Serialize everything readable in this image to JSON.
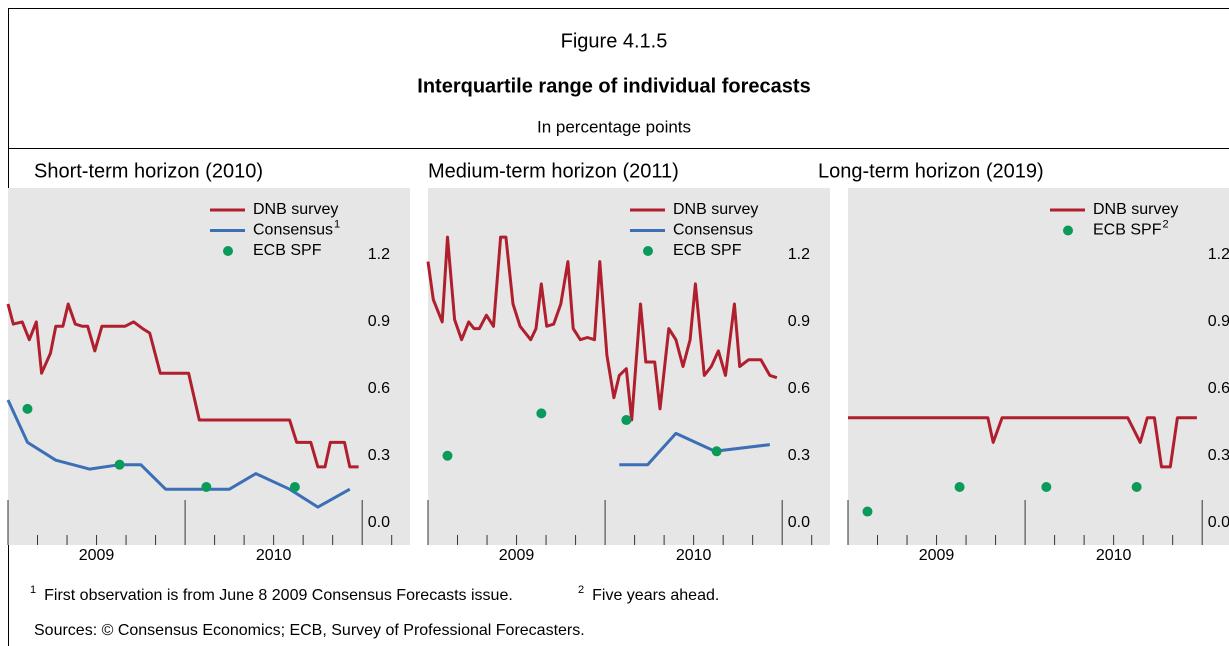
{
  "figure": {
    "number": "Figure 4.1.5",
    "title": "Interquartile range of individual forecasts",
    "subtitle": "In percentage points"
  },
  "chart_data": [
    {
      "type": "line",
      "title": "Short-term horizon (2010)",
      "xlim": [
        2009,
        2011.27
      ],
      "ylim": [
        -0.1,
        1.5
      ],
      "xticks": [
        {
          "value": 2009.5,
          "label": "2009"
        },
        {
          "value": 2010.5,
          "label": "2010"
        }
      ],
      "yticks": [
        {
          "value": 0,
          "label": "0.0"
        },
        0.3,
        0.6,
        0.9,
        1.2
      ],
      "series": [
        {
          "name": "DNB survey",
          "color": "#b01f2e",
          "type": "line",
          "x": [
            2009.0,
            2009.03,
            2009.08,
            2009.12,
            2009.16,
            2009.19,
            2009.24,
            2009.27,
            2009.31,
            2009.34,
            2009.38,
            2009.42,
            2009.45,
            2009.49,
            2009.53,
            2009.66,
            2009.71,
            2009.76,
            2009.8,
            2009.86,
            2010.02,
            2010.08,
            2010.59,
            2010.63,
            2010.71,
            2010.75,
            2010.79,
            2010.82,
            2010.9,
            2010.93,
            2010.98
          ],
          "values": [
            0.98,
            0.89,
            0.9,
            0.82,
            0.9,
            0.67,
            0.76,
            0.88,
            0.88,
            0.98,
            0.89,
            0.88,
            0.88,
            0.77,
            0.88,
            0.88,
            0.9,
            0.87,
            0.85,
            0.67,
            0.67,
            0.46,
            0.46,
            0.36,
            0.36,
            0.25,
            0.25,
            0.36,
            0.36,
            0.25,
            0.25
          ]
        },
        {
          "name": "Consensus",
          "footnote": "1",
          "color": "#3b6fb6",
          "type": "line",
          "x": [
            2009.0,
            2009.11,
            2009.27,
            2009.46,
            2009.63,
            2009.75,
            2009.89,
            2010.06,
            2010.25,
            2010.4,
            2010.59,
            2010.75,
            2010.93
          ],
          "values": [
            0.55,
            0.36,
            0.28,
            0.24,
            0.26,
            0.26,
            0.15,
            0.15,
            0.15,
            0.22,
            0.15,
            0.07,
            0.15
          ]
        },
        {
          "name": "ECB SPF",
          "color": "#0a9a5a",
          "type": "scatter",
          "x": [
            2009.11,
            2009.63,
            2010.12,
            2010.62
          ],
          "values": [
            0.51,
            0.26,
            0.16,
            0.16
          ]
        }
      ]
    },
    {
      "type": "line",
      "title": "Medium-term horizon (2011)",
      "xlim": [
        2009,
        2011.27
      ],
      "ylim": [
        -0.1,
        1.5
      ],
      "xticks": [
        {
          "value": 2009.5,
          "label": "2009"
        },
        {
          "value": 2010.5,
          "label": "2010"
        }
      ],
      "yticks": [
        {
          "value": 0,
          "label": "0.0"
        },
        0.3,
        0.6,
        0.9,
        1.2
      ],
      "series": [
        {
          "name": "DNB survey",
          "color": "#b01f2e",
          "type": "line",
          "x": [
            2009.0,
            2009.03,
            2009.08,
            2009.11,
            2009.15,
            2009.19,
            2009.23,
            2009.26,
            2009.29,
            2009.33,
            2009.37,
            2009.41,
            2009.44,
            2009.48,
            2009.52,
            2009.58,
            2009.61,
            2009.64,
            2009.67,
            2009.71,
            2009.75,
            2009.79,
            2009.82,
            2009.86,
            2009.9,
            2009.94,
            2009.97,
            2010.01,
            2010.05,
            2010.08,
            2010.12,
            2010.15,
            2010.2,
            2010.23,
            2010.28,
            2010.31,
            2010.36,
            2010.4,
            2010.44,
            2010.48,
            2010.51,
            2010.56,
            2010.6,
            2010.64,
            2010.68,
            2010.73,
            2010.76,
            2010.81,
            2010.88,
            2010.93,
            2010.97
          ],
          "values": [
            1.17,
            1.0,
            0.9,
            1.28,
            0.91,
            0.82,
            0.9,
            0.87,
            0.87,
            0.93,
            0.88,
            1.28,
            1.28,
            0.98,
            0.88,
            0.82,
            0.87,
            1.07,
            0.88,
            0.89,
            0.98,
            1.17,
            0.87,
            0.82,
            0.83,
            0.82,
            1.17,
            0.75,
            0.56,
            0.66,
            0.69,
            0.46,
            0.98,
            0.72,
            0.72,
            0.51,
            0.87,
            0.82,
            0.7,
            0.82,
            1.07,
            0.66,
            0.7,
            0.77,
            0.66,
            0.98,
            0.7,
            0.73,
            0.73,
            0.66,
            0.65
          ]
        },
        {
          "name": "Consensus",
          "color": "#3b6fb6",
          "type": "line",
          "x": [
            2010.08,
            2010.24,
            2010.4,
            2010.62,
            2010.93
          ],
          "values": [
            0.26,
            0.26,
            0.4,
            0.32,
            0.35
          ]
        },
        {
          "name": "ECB SPF",
          "color": "#0a9a5a",
          "type": "scatter",
          "x": [
            2009.11,
            2009.64,
            2010.12,
            2010.63
          ],
          "values": [
            0.3,
            0.49,
            0.46,
            0.32
          ]
        }
      ]
    },
    {
      "type": "line",
      "title": "Long-term horizon (2019)",
      "xlim": [
        2009,
        2011.27
      ],
      "ylim": [
        -0.1,
        1.5
      ],
      "xticks": [
        {
          "value": 2009.5,
          "label": "2009"
        },
        {
          "value": 2010.5,
          "label": "2010"
        }
      ],
      "yticks": [
        {
          "value": 0,
          "label": "0.0"
        },
        0.3,
        0.6,
        0.9,
        1.2
      ],
      "series": [
        {
          "name": "DNB survey",
          "color": "#b01f2e",
          "type": "line",
          "x": [
            2009.0,
            2009.79,
            2009.82,
            2009.87,
            2010.58,
            2010.65,
            2010.69,
            2010.73,
            2010.77,
            2010.82,
            2010.86,
            2010.97
          ],
          "values": [
            0.47,
            0.47,
            0.36,
            0.47,
            0.47,
            0.36,
            0.47,
            0.47,
            0.25,
            0.25,
            0.47,
            0.47
          ]
        },
        {
          "name": "ECB SPF",
          "footnote": "2",
          "color": "#0a9a5a",
          "type": "scatter",
          "x": [
            2009.11,
            2009.63,
            2010.12,
            2010.63
          ],
          "values": [
            0.05,
            0.16,
            0.16,
            0.16
          ]
        }
      ]
    }
  ],
  "footnotes": [
    {
      "marker": "1",
      "text": "First observation is from June 8 2009 Consensus Forecasts issue."
    },
    {
      "marker": "2",
      "text": "Five years ahead."
    }
  ],
  "sources": "Sources: © Consensus Economics; ECB, Survey of Professional Forecasters."
}
